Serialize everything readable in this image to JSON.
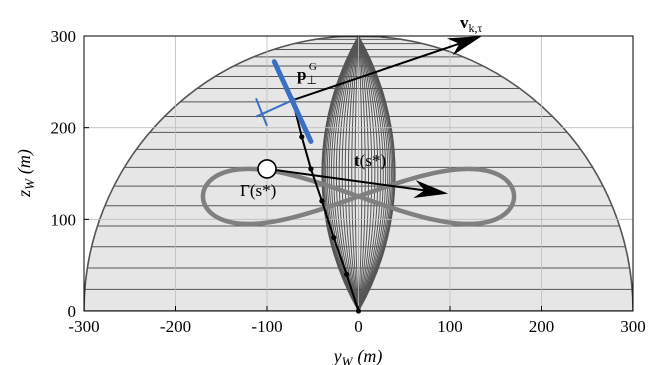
{
  "chart_data": {
    "type": "line",
    "xlabel_var": "y",
    "xlabel_sub": "W",
    "xlabel_unit": "(m)",
    "ylabel_var": "z",
    "ylabel_sub": "W",
    "ylabel_unit": "(m)",
    "xlim": [
      -300,
      300
    ],
    "ylim": [
      0,
      300
    ],
    "xticks": [
      -300,
      -200,
      -100,
      0,
      100,
      200,
      300
    ],
    "yticks": [
      0,
      100,
      200,
      300
    ],
    "grid": true,
    "legend": "none",
    "colors": {
      "hemisphere_fill": "#e6e6e6",
      "hemisphere_lines": "#555555",
      "figure_eight": "#808080",
      "tether": "#000000",
      "aircraft": "#3a6fc4",
      "vectors": "#000000"
    },
    "hemisphere": {
      "radius": 300
    },
    "figure_eight": {
      "center": [
        0,
        125
      ],
      "half_width": 170,
      "half_height": 30
    },
    "tether_points": [
      [
        0,
        0
      ],
      [
        -13,
        40
      ],
      [
        -27,
        80
      ],
      [
        -40,
        120
      ],
      [
        -52,
        155
      ],
      [
        -62,
        190
      ],
      [
        -72,
        230
      ]
    ],
    "aircraft": {
      "position": [
        -72,
        230
      ],
      "wing_start": [
        -92,
        272
      ],
      "wing_end": [
        -52,
        185
      ],
      "tail_start": [
        -112,
        212
      ],
      "tail_end": [
        -100,
        232
      ]
    },
    "closest_point": [
      -100,
      155
    ],
    "vectors": [
      {
        "from": [
          -72,
          230
        ],
        "to": [
          135,
          300
        ]
      },
      {
        "from": [
          -100,
          155
        ],
        "to": [
          98,
          128
        ]
      }
    ],
    "annotations": {
      "velocity": {
        "base": "v",
        "sub": "k,τ"
      },
      "perp": {
        "base": "p",
        "sub": "⊥",
        "sup": "G"
      },
      "tangent": {
        "base": "t",
        "arg": "(s*)"
      },
      "gamma": {
        "text": "Γ(s*)"
      }
    }
  }
}
